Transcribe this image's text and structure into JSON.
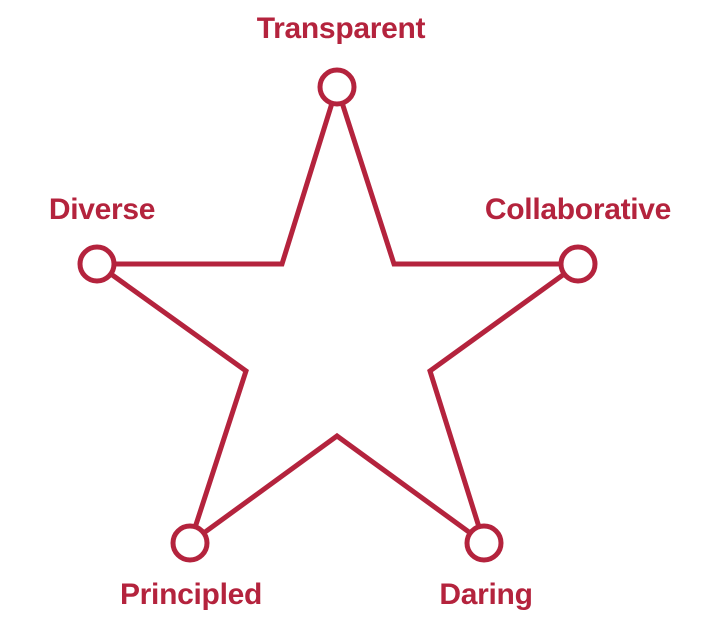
{
  "colors": {
    "accent": "#b4233d",
    "background": "#ffffff"
  },
  "values": [
    {
      "id": "transparent",
      "label": "Transparent"
    },
    {
      "id": "collaborative",
      "label": "Collaborative"
    },
    {
      "id": "daring",
      "label": "Daring"
    },
    {
      "id": "principled",
      "label": "Principled"
    },
    {
      "id": "diverse",
      "label": "Diverse"
    }
  ]
}
